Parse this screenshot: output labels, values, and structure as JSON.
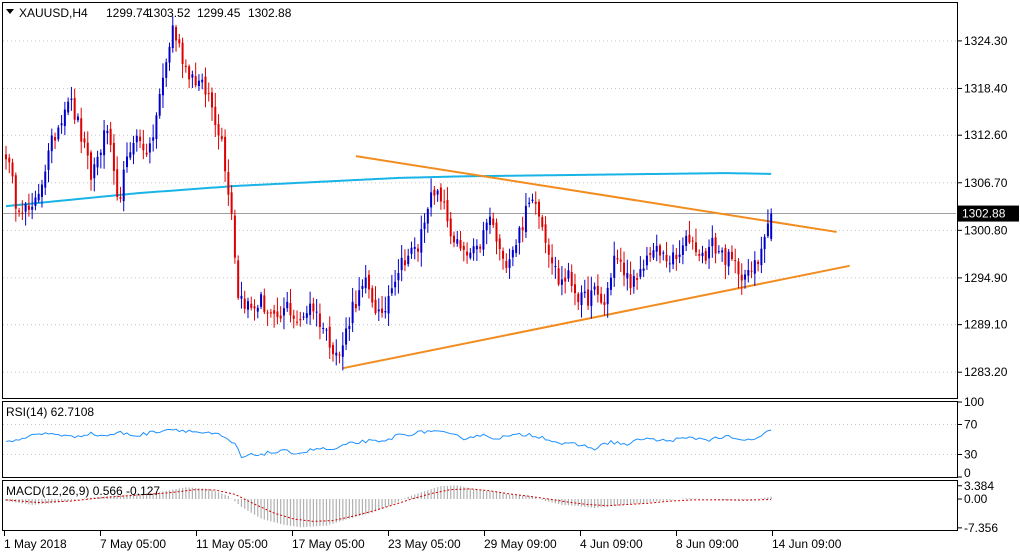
{
  "header": {
    "symbol": "XAUUSD,H4",
    "open": "1299.74",
    "high": "1303.52",
    "low": "1299.45",
    "close": "1302.88"
  },
  "colors": {
    "bull": "#0000cc",
    "bear": "#dd0000",
    "ma": "#19b4e6",
    "trend": "#f28c1e",
    "rsi": "#1e90ff",
    "macd_hist": "#b0b0b0",
    "macd_signal": "#cc0000",
    "grid": "#c8c8c8"
  },
  "chart_data": [
    {
      "type": "candlestick",
      "name": "price",
      "ylim": [
        1280.0,
        1329.0
      ],
      "y_ticks": [
        "1324.30",
        "1318.40",
        "1312.60",
        "1306.70",
        "1300.80",
        "1294.90",
        "1289.10",
        "1283.20"
      ],
      "current_price_label": "1302.88",
      "x_tick_labels": [
        "1 May 2018",
        "7 May 05:00",
        "11 May 05:00",
        "17 May 05:00",
        "23 May 05:00",
        "29 May 09:00",
        "4 Jun 09:00",
        "8 Jun 09:00",
        "14 Jun 09:00"
      ],
      "anchors": [
        [
          0,
          1310.5
        ],
        [
          3,
          1304.5
        ],
        [
          8,
          1302.8
        ],
        [
          14,
          1311.5
        ],
        [
          19,
          1317.5
        ],
        [
          22,
          1314.0
        ],
        [
          26,
          1307.5
        ],
        [
          31,
          1313.5
        ],
        [
          34,
          1304.0
        ],
        [
          39,
          1312.5
        ],
        [
          44,
          1310.5
        ],
        [
          48,
          1319.5
        ],
        [
          51,
          1326.0
        ],
        [
          55,
          1321.0
        ],
        [
          58,
          1319.5
        ],
        [
          62,
          1317.5
        ],
        [
          66,
          1312.0
        ],
        [
          69,
          1303.0
        ],
        [
          71,
          1293.0
        ],
        [
          75,
          1291.0
        ],
        [
          78,
          1292.0
        ],
        [
          83,
          1289.0
        ],
        [
          86,
          1291.5
        ],
        [
          90,
          1289.0
        ],
        [
          93,
          1292.0
        ],
        [
          98,
          1288.0
        ],
        [
          102,
          1285.0
        ],
        [
          106,
          1291.5
        ],
        [
          110,
          1294.0
        ],
        [
          115,
          1289.5
        ],
        [
          118,
          1294.5
        ],
        [
          122,
          1297.5
        ],
        [
          126,
          1298.5
        ],
        [
          129,
          1304.5
        ],
        [
          133,
          1305.0
        ],
        [
          136,
          1300.5
        ],
        [
          140,
          1297.5
        ],
        [
          144,
          1298.0
        ],
        [
          148,
          1302.5
        ],
        [
          152,
          1296.5
        ],
        [
          156,
          1299.5
        ],
        [
          160,
          1304.0
        ],
        [
          162,
          1305.0
        ],
        [
          165,
          1300.0
        ],
        [
          169,
          1294.5
        ],
        [
          172,
          1295.0
        ],
        [
          176,
          1292.0
        ],
        [
          180,
          1293.0
        ],
        [
          183,
          1291.5
        ],
        [
          186,
          1297.5
        ],
        [
          190,
          1295.0
        ],
        [
          193,
          1294.0
        ],
        [
          197,
          1298.5
        ],
        [
          201,
          1297.5
        ],
        [
          205,
          1297.0
        ],
        [
          209,
          1300.0
        ],
        [
          213,
          1297.5
        ],
        [
          216,
          1299.0
        ],
        [
          220,
          1297.5
        ],
        [
          224,
          1296.0
        ],
        [
          227,
          1295.0
        ],
        [
          230,
          1297.0
        ],
        [
          232,
          1301.0
        ],
        [
          234,
          1302.9
        ]
      ],
      "moving_average": [
        [
          0,
          1303.8
        ],
        [
          40,
          1305.4
        ],
        [
          70,
          1306.3
        ],
        [
          100,
          1306.9
        ],
        [
          120,
          1307.3
        ],
        [
          140,
          1307.5
        ],
        [
          160,
          1307.6
        ],
        [
          180,
          1307.7
        ],
        [
          200,
          1307.8
        ],
        [
          220,
          1307.9
        ],
        [
          234,
          1307.8
        ]
      ],
      "trendlines": [
        {
          "label": "upper",
          "points": [
            [
              107,
              1310.0
            ],
            [
              254,
              1300.6
            ]
          ]
        },
        {
          "label": "lower",
          "points": [
            [
              103,
              1283.7
            ],
            [
              258,
              1296.4
            ]
          ]
        }
      ]
    },
    {
      "type": "line",
      "name": "RSI",
      "label": "RSI(14) 62.7108",
      "ylim": [
        0,
        100
      ],
      "y_ticks": [
        "100",
        "70",
        "30",
        "0"
      ],
      "anchors": [
        [
          0,
          46
        ],
        [
          5,
          52
        ],
        [
          10,
          57
        ],
        [
          15,
          58
        ],
        [
          20,
          53
        ],
        [
          25,
          58
        ],
        [
          30,
          55
        ],
        [
          35,
          59
        ],
        [
          40,
          55
        ],
        [
          45,
          60
        ],
        [
          50,
          64
        ],
        [
          55,
          62
        ],
        [
          60,
          59
        ],
        [
          65,
          56
        ],
        [
          70,
          44
        ],
        [
          72,
          26
        ],
        [
          75,
          29
        ],
        [
          80,
          32
        ],
        [
          85,
          34
        ],
        [
          90,
          32
        ],
        [
          95,
          38
        ],
        [
          100,
          36
        ],
        [
          105,
          44
        ],
        [
          110,
          48
        ],
        [
          115,
          46
        ],
        [
          120,
          56
        ],
        [
          125,
          58
        ],
        [
          130,
          62
        ],
        [
          135,
          57
        ],
        [
          140,
          52
        ],
        [
          145,
          56
        ],
        [
          150,
          52
        ],
        [
          155,
          55
        ],
        [
          160,
          57
        ],
        [
          165,
          52
        ],
        [
          170,
          44
        ],
        [
          175,
          43
        ],
        [
          180,
          38
        ],
        [
          185,
          47
        ],
        [
          190,
          43
        ],
        [
          195,
          52
        ],
        [
          200,
          48
        ],
        [
          205,
          50
        ],
        [
          210,
          52
        ],
        [
          215,
          50
        ],
        [
          220,
          54
        ],
        [
          225,
          48
        ],
        [
          230,
          52
        ],
        [
          234,
          62.7
        ]
      ]
    },
    {
      "type": "histogram+line",
      "name": "MACD",
      "label": "MACD(12,26,9) 0.566 -0.127",
      "ylim": [
        -7.9,
        4.6
      ],
      "y_ticks": [
        "3.384",
        "0.00",
        "-7.356"
      ],
      "histogram_anchors": [
        [
          0,
          -0.5
        ],
        [
          8,
          -1.5
        ],
        [
          15,
          -1.0
        ],
        [
          25,
          0.3
        ],
        [
          35,
          1.0
        ],
        [
          45,
          1.5
        ],
        [
          55,
          3.0
        ],
        [
          62,
          2.6
        ],
        [
          68,
          0.8
        ],
        [
          72,
          -2.0
        ],
        [
          78,
          -5.0
        ],
        [
          85,
          -6.6
        ],
        [
          90,
          -7.2
        ],
        [
          98,
          -6.8
        ],
        [
          105,
          -5.0
        ],
        [
          112,
          -3.5
        ],
        [
          118,
          -1.5
        ],
        [
          123,
          0.6
        ],
        [
          128,
          2.0
        ],
        [
          133,
          3.3
        ],
        [
          138,
          3.5
        ],
        [
          143,
          2.5
        ],
        [
          150,
          1.8
        ],
        [
          155,
          1.0
        ],
        [
          160,
          0.8
        ],
        [
          165,
          -0.5
        ],
        [
          170,
          -1.5
        ],
        [
          175,
          -1.8
        ],
        [
          180,
          -2.3
        ],
        [
          185,
          -1.8
        ],
        [
          190,
          -1.4
        ],
        [
          195,
          -1.0
        ],
        [
          200,
          -0.5
        ],
        [
          208,
          0.2
        ],
        [
          215,
          0.0
        ],
        [
          220,
          -0.3
        ],
        [
          228,
          -0.2
        ],
        [
          234,
          0.6
        ]
      ],
      "signal_anchors": [
        [
          0,
          -0.2
        ],
        [
          10,
          -0.9
        ],
        [
          20,
          -0.5
        ],
        [
          30,
          0.4
        ],
        [
          40,
          1.0
        ],
        [
          50,
          1.6
        ],
        [
          58,
          2.4
        ],
        [
          64,
          2.3
        ],
        [
          70,
          1.2
        ],
        [
          76,
          -1.3
        ],
        [
          82,
          -3.6
        ],
        [
          88,
          -5.1
        ],
        [
          94,
          -5.7
        ],
        [
          100,
          -5.5
        ],
        [
          106,
          -4.4
        ],
        [
          112,
          -3.1
        ],
        [
          118,
          -1.6
        ],
        [
          124,
          0.0
        ],
        [
          130,
          1.4
        ],
        [
          136,
          2.4
        ],
        [
          142,
          2.6
        ],
        [
          148,
          2.1
        ],
        [
          154,
          1.3
        ],
        [
          160,
          0.7
        ],
        [
          166,
          0.0
        ],
        [
          172,
          -0.8
        ],
        [
          178,
          -1.4
        ],
        [
          184,
          -1.7
        ],
        [
          190,
          -1.4
        ],
        [
          196,
          -1.1
        ],
        [
          202,
          -0.6
        ],
        [
          210,
          -0.2
        ],
        [
          218,
          -0.2
        ],
        [
          226,
          -0.3
        ],
        [
          234,
          -0.1
        ]
      ]
    }
  ]
}
